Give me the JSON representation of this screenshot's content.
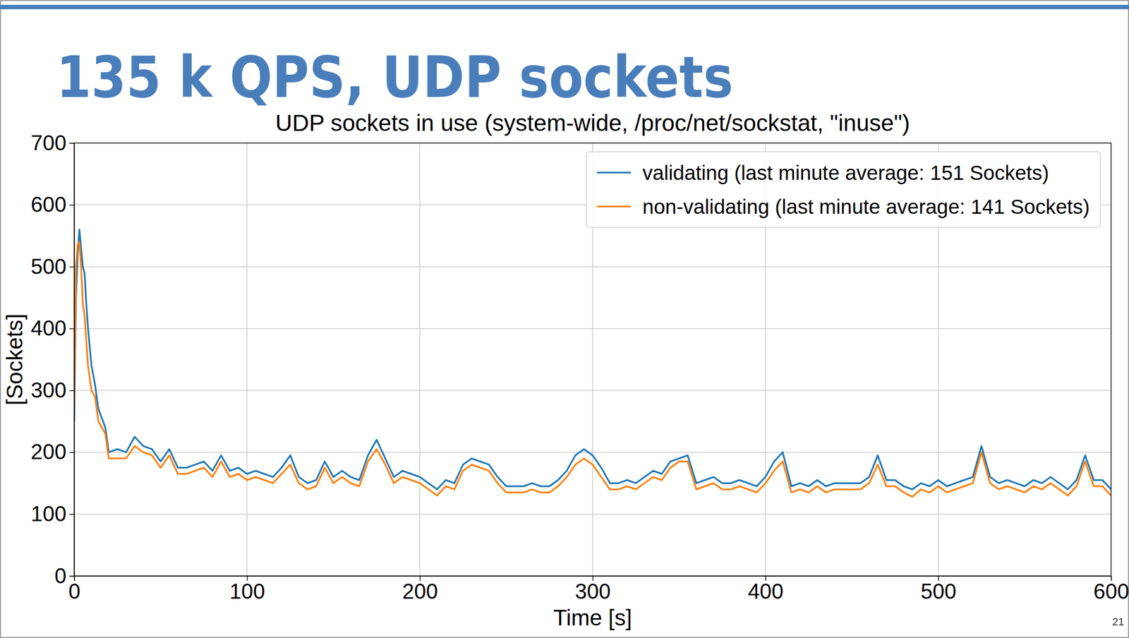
{
  "slide_title": "135 k QPS, UDP sockets",
  "page_number": "21",
  "chart_data": {
    "type": "line",
    "title": "UDP sockets in use (system-wide, /proc/net/sockstat, \"inuse\")",
    "x_label": "Time [s]",
    "y_label": "[Sockets]",
    "xlim": [
      0,
      600
    ],
    "ylim": [
      0,
      700
    ],
    "xticks": [
      0,
      100,
      200,
      300,
      400,
      500,
      600
    ],
    "yticks": [
      0,
      100,
      200,
      300,
      400,
      500,
      600,
      700
    ],
    "grid": true,
    "legend": "upper right",
    "x": [
      0,
      1,
      2,
      3,
      4,
      5,
      6,
      7,
      8,
      10,
      12,
      14,
      16,
      18,
      20,
      25,
      30,
      35,
      40,
      45,
      50,
      55,
      60,
      65,
      70,
      75,
      80,
      85,
      90,
      95,
      100,
      105,
      110,
      115,
      120,
      125,
      130,
      135,
      140,
      145,
      150,
      155,
      160,
      165,
      170,
      175,
      180,
      185,
      190,
      195,
      200,
      205,
      210,
      215,
      220,
      225,
      230,
      235,
      240,
      245,
      250,
      255,
      260,
      265,
      270,
      275,
      280,
      285,
      290,
      295,
      300,
      305,
      310,
      315,
      320,
      325,
      330,
      335,
      340,
      345,
      350,
      355,
      360,
      365,
      370,
      375,
      380,
      385,
      390,
      395,
      400,
      405,
      410,
      415,
      420,
      425,
      430,
      435,
      440,
      445,
      450,
      455,
      460,
      465,
      470,
      475,
      480,
      485,
      490,
      495,
      500,
      505,
      510,
      515,
      520,
      525,
      530,
      535,
      540,
      545,
      550,
      555,
      560,
      565,
      570,
      575,
      580,
      585,
      590,
      595,
      600
    ],
    "series": [
      {
        "name": "validating (last minute average: 151 Sockets)",
        "color": "#1f77b4",
        "values": [
          250,
          450,
          520,
          560,
          530,
          500,
          490,
          440,
          400,
          340,
          310,
          270,
          255,
          240,
          200,
          205,
          200,
          225,
          210,
          205,
          185,
          205,
          175,
          175,
          180,
          185,
          170,
          195,
          170,
          175,
          165,
          170,
          165,
          160,
          175,
          195,
          160,
          150,
          155,
          185,
          160,
          170,
          160,
          155,
          195,
          220,
          190,
          160,
          170,
          165,
          160,
          150,
          140,
          155,
          150,
          180,
          190,
          185,
          180,
          160,
          145,
          145,
          145,
          150,
          145,
          145,
          155,
          170,
          195,
          205,
          195,
          175,
          150,
          150,
          155,
          150,
          160,
          170,
          165,
          185,
          190,
          195,
          150,
          155,
          160,
          150,
          150,
          155,
          150,
          145,
          160,
          185,
          200,
          145,
          150,
          145,
          155,
          145,
          150,
          150,
          150,
          150,
          160,
          195,
          155,
          155,
          145,
          140,
          150,
          145,
          155,
          145,
          150,
          155,
          160,
          210,
          160,
          150,
          155,
          150,
          145,
          155,
          150,
          160,
          150,
          140,
          155,
          195,
          155,
          155,
          140
        ]
      },
      {
        "name": "non-validating (last minute average: 141 Sockets)",
        "color": "#ff7f0e",
        "values": [
          280,
          500,
          535,
          540,
          500,
          440,
          420,
          380,
          340,
          300,
          290,
          250,
          240,
          230,
          190,
          190,
          190,
          210,
          200,
          195,
          175,
          195,
          165,
          165,
          170,
          175,
          160,
          185,
          160,
          165,
          155,
          160,
          155,
          150,
          165,
          180,
          150,
          140,
          145,
          175,
          150,
          160,
          150,
          145,
          185,
          205,
          180,
          150,
          160,
          155,
          150,
          140,
          130,
          145,
          140,
          170,
          180,
          175,
          170,
          150,
          135,
          135,
          135,
          140,
          135,
          135,
          145,
          160,
          180,
          190,
          180,
          160,
          140,
          140,
          145,
          140,
          150,
          160,
          155,
          175,
          185,
          185,
          140,
          145,
          150,
          140,
          140,
          145,
          140,
          135,
          150,
          170,
          185,
          135,
          140,
          135,
          145,
          135,
          140,
          140,
          140,
          140,
          150,
          180,
          145,
          145,
          135,
          128,
          140,
          135,
          145,
          135,
          140,
          145,
          150,
          200,
          150,
          140,
          145,
          140,
          135,
          145,
          140,
          150,
          140,
          130,
          145,
          185,
          145,
          145,
          130
        ]
      }
    ]
  }
}
